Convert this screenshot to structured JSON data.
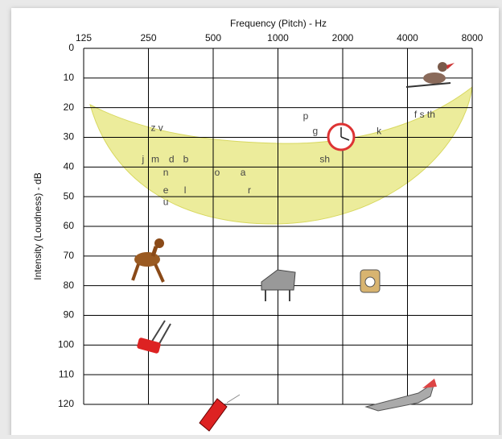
{
  "chart_data": {
    "type": "audiogram",
    "title": "Frequency (Pitch) - Hz",
    "y_label": "Intensity (Loudness) - dB",
    "x_scale": "log",
    "xlim": [
      125,
      8000
    ],
    "xticks": [
      125,
      250,
      500,
      1000,
      2000,
      4000,
      8000
    ],
    "ylim": [
      0,
      120
    ],
    "yticks": [
      0,
      10,
      20,
      30,
      40,
      50,
      60,
      70,
      80,
      90,
      100,
      110,
      120
    ],
    "y_inverted": true,
    "grid": true,
    "annotations": [
      {
        "text": "z v",
        "x": 274,
        "y": 27
      },
      {
        "text": "j",
        "x": 236,
        "y": 37.5
      },
      {
        "text": "m",
        "x": 269,
        "y": 37.5
      },
      {
        "text": "d",
        "x": 320,
        "y": 37.5
      },
      {
        "text": "b",
        "x": 373,
        "y": 37.5
      },
      {
        "text": "n",
        "x": 301,
        "y": 42
      },
      {
        "text": "e",
        "x": 301,
        "y": 48
      },
      {
        "text": "l",
        "x": 370,
        "y": 48
      },
      {
        "text": "u",
        "x": 301,
        "y": 52
      },
      {
        "text": "o",
        "x": 522,
        "y": 42
      },
      {
        "text": "a",
        "x": 688,
        "y": 42
      },
      {
        "text": "r",
        "x": 737,
        "y": 48
      },
      {
        "text": "p",
        "x": 1346,
        "y": 23
      },
      {
        "text": "g",
        "x": 1490,
        "y": 28
      },
      {
        "text": "sh",
        "x": 1650,
        "y": 37.5
      },
      {
        "text": "k",
        "x": 2950,
        "y": 28
      },
      {
        "text": "f s th",
        "x": 4810,
        "y": 22.5
      }
    ]
  }
}
